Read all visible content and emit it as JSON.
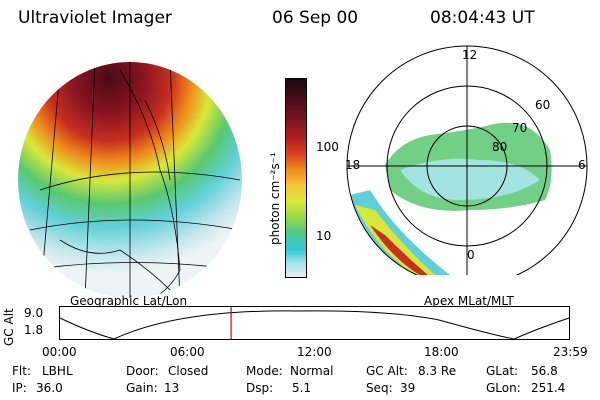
{
  "header": {
    "instrument": "Ultraviolet Imager",
    "date": "06 Sep 00",
    "time": "08:04:43 UT"
  },
  "colorbar": {
    "unit_label": "photon cm⁻²s⁻¹",
    "ticks": [
      "100",
      "10"
    ],
    "colors": [
      "#1a0a14",
      "#4a0b18",
      "#7a1420",
      "#b02020",
      "#d84020",
      "#f08a1a",
      "#f4c83a",
      "#d8e83a",
      "#98d848",
      "#48c890",
      "#30c8d8",
      "#a8e4ea",
      "#e8f0f2"
    ]
  },
  "panels": {
    "left_label": "Geographic Lat/Lon",
    "right_label": "Apex MLat/MLT"
  },
  "polar_plot": {
    "mlt_labels": [
      "12",
      "18",
      "6",
      "0"
    ],
    "lat_labels": [
      "60",
      "70",
      "80"
    ]
  },
  "timeline": {
    "axis_label": "GC Alt",
    "y_ticks": [
      "9.0",
      "1.8"
    ],
    "x_ticks": [
      "00:00",
      "06:00",
      "12:00",
      "18:00",
      "23:59"
    ],
    "marker_time": "08:04",
    "marker_color": "#dd0000"
  },
  "status": {
    "row1": [
      {
        "key": "Flt:",
        "value": "LBHL"
      },
      {
        "key": "Door:",
        "value": "Closed"
      },
      {
        "key": "Mode:",
        "value": "Normal"
      },
      {
        "key": "GC Alt:",
        "value": "8.3 Re"
      },
      {
        "key": "GLat:",
        "value": "56.8"
      }
    ],
    "row2": [
      {
        "key": "IP:",
        "value": "36.0"
      },
      {
        "key": "Gain:",
        "value": "13"
      },
      {
        "key": "Dsp:",
        "value": "5.1"
      },
      {
        "key": "Seq:",
        "value": "39"
      },
      {
        "key": "GLon:",
        "value": "251.4"
      }
    ]
  }
}
